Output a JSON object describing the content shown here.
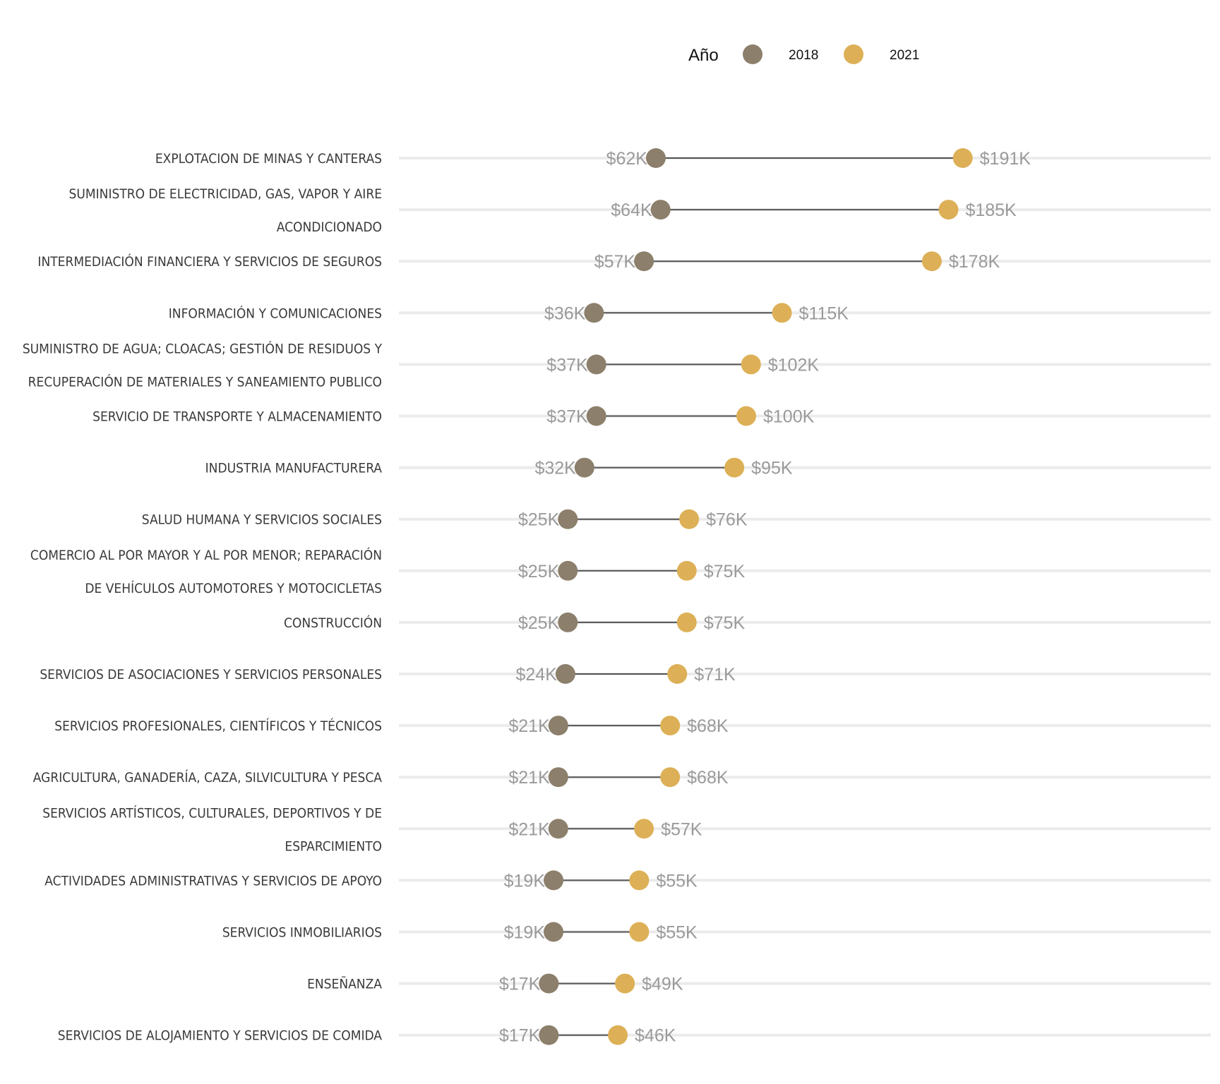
{
  "chart_data": {
    "type": "dumbbell",
    "title": "",
    "xlabel": "",
    "ylabel": "",
    "legend": {
      "title": "Año",
      "position": "top",
      "entries": [
        {
          "name": "2018",
          "color": "#8c7f6b"
        },
        {
          "name": "2021",
          "color": "#ddb057"
        }
      ]
    },
    "grid": "horizontal",
    "series_names": [
      "2018",
      "2021"
    ],
    "categories": [
      {
        "label_lines": [
          "EXPLOTACION DE MINAS Y CANTERAS"
        ],
        "v2018": 62,
        "v2021": 191,
        "l2018": "$62K",
        "l2021": "$191K"
      },
      {
        "label_lines": [
          "SUMINISTRO DE ELECTRICIDAD, GAS, VAPOR Y AIRE",
          "ACONDICIONADO"
        ],
        "v2018": 64,
        "v2021": 185,
        "l2018": "$64K",
        "l2021": "$185K"
      },
      {
        "label_lines": [
          "INTERMEDIACIÓN FINANCIERA Y SERVICIOS DE SEGUROS"
        ],
        "v2018": 57,
        "v2021": 178,
        "l2018": "$57K",
        "l2021": "$178K"
      },
      {
        "label_lines": [
          "INFORMACIÓN Y COMUNICACIONES"
        ],
        "v2018": 36,
        "v2021": 115,
        "l2018": "$36K",
        "l2021": "$115K"
      },
      {
        "label_lines": [
          "SUMINISTRO DE AGUA; CLOACAS; GESTIÓN DE RESIDUOS Y",
          "RECUPERACIÓN DE MATERIALES Y SANEAMIENTO PUBLICO"
        ],
        "v2018": 37,
        "v2021": 102,
        "l2018": "$37K",
        "l2021": "$102K"
      },
      {
        "label_lines": [
          "SERVICIO DE TRANSPORTE Y ALMACENAMIENTO"
        ],
        "v2018": 37,
        "v2021": 100,
        "l2018": "$37K",
        "l2021": "$100K"
      },
      {
        "label_lines": [
          "INDUSTRIA MANUFACTURERA"
        ],
        "v2018": 32,
        "v2021": 95,
        "l2018": "$32K",
        "l2021": "$95K"
      },
      {
        "label_lines": [
          "SALUD HUMANA Y SERVICIOS SOCIALES"
        ],
        "v2018": 25,
        "v2021": 76,
        "l2018": "$25K",
        "l2021": "$76K"
      },
      {
        "label_lines": [
          "COMERCIO AL POR MAYOR Y AL POR MENOR; REPARACIÓN",
          "DE VEHÍCULOS AUTOMOTORES Y MOTOCICLETAS"
        ],
        "v2018": 25,
        "v2021": 75,
        "l2018": "$25K",
        "l2021": "$75K"
      },
      {
        "label_lines": [
          "CONSTRUCCIÓN"
        ],
        "v2018": 25,
        "v2021": 75,
        "l2018": "$25K",
        "l2021": "$75K"
      },
      {
        "label_lines": [
          "SERVICIOS DE ASOCIACIONES Y SERVICIOS PERSONALES"
        ],
        "v2018": 24,
        "v2021": 71,
        "l2018": "$24K",
        "l2021": "$71K"
      },
      {
        "label_lines": [
          "SERVICIOS PROFESIONALES, CIENTÍFICOS Y TÉCNICOS"
        ],
        "v2018": 21,
        "v2021": 68,
        "l2018": "$21K",
        "l2021": "$68K"
      },
      {
        "label_lines": [
          "AGRICULTURA, GANADERÍA, CAZA, SILVICULTURA Y PESCA"
        ],
        "v2018": 21,
        "v2021": 68,
        "l2018": "$21K",
        "l2021": "$68K"
      },
      {
        "label_lines": [
          "SERVICIOS ARTÍSTICOS, CULTURALES, DEPORTIVOS Y DE",
          "ESPARCIMIENTO"
        ],
        "v2018": 21,
        "v2021": 57,
        "l2018": "$21K",
        "l2021": "$57K"
      },
      {
        "label_lines": [
          "ACTIVIDADES ADMINISTRATIVAS Y SERVICIOS DE APOYO"
        ],
        "v2018": 19,
        "v2021": 55,
        "l2018": "$19K",
        "l2021": "$55K"
      },
      {
        "label_lines": [
          "SERVICIOS INMOBILIARIOS"
        ],
        "v2018": 19,
        "v2021": 55,
        "l2018": "$19K",
        "l2021": "$55K"
      },
      {
        "label_lines": [
          "ENSEÑANZA"
        ],
        "v2018": 17,
        "v2021": 49,
        "l2018": "$17K",
        "l2021": "$49K"
      },
      {
        "label_lines": [
          "SERVICIOS DE ALOJAMIENTO Y SERVICIOS DE COMIDA"
        ],
        "v2018": 17,
        "v2021": 46,
        "l2018": "$17K",
        "l2021": "$46K"
      }
    ],
    "colors": {
      "gridline": "#ebebeb",
      "connector": "#555555",
      "value_label": "#9a9a9a",
      "category_label": "#3a3a3a"
    }
  }
}
